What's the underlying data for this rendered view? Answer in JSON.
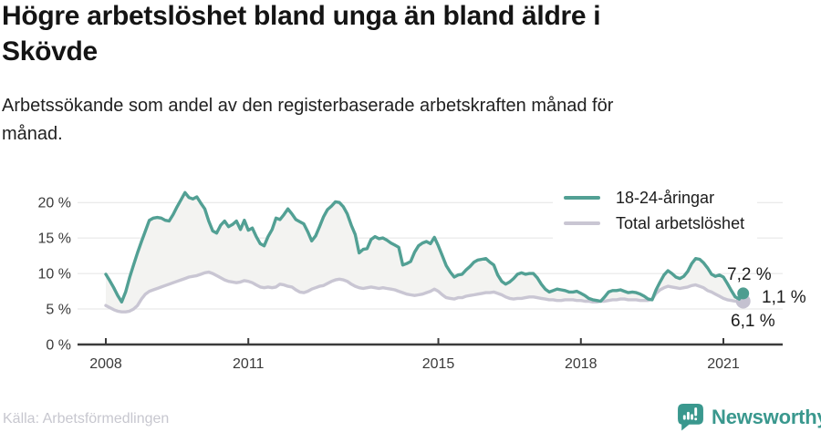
{
  "header": {
    "title_lines": [
      "Högre arbetslöshet bland unga än bland äldre i",
      "Skövde"
    ],
    "subtitle_lines": [
      "Arbetssökande som andel av den registerbaserade arbetskraften månad för",
      "månad."
    ]
  },
  "footer": {
    "source": "Källa: Arbetsförmedlingen",
    "brand": "Newsworthy"
  },
  "colors": {
    "young_line": "#52a094",
    "total_line": "#c9c6d3",
    "young_dot": "#4e9d90",
    "total_dot": "#c4c1d0",
    "fill_between": "#f3f3f1",
    "gridline": "#e4e4e4",
    "axis": "#3b3b3b",
    "tick_label": "#3a3a3a",
    "logo_teal": "#3a988e",
    "background": "#ffffff"
  },
  "chart_data": {
    "type": "line",
    "x_unit": "month",
    "x_start": "2008-01",
    "x_end": "2021-06",
    "grid": "horizontal",
    "legend_position": "top-right",
    "area_fill_between_series": true,
    "ylim": [
      0,
      22
    ],
    "y_ticks": [
      {
        "value": 0,
        "label": "0 %"
      },
      {
        "value": 5,
        "label": "5 %"
      },
      {
        "value": 10,
        "label": "10 %"
      },
      {
        "value": 15,
        "label": "15 %"
      },
      {
        "value": 20,
        "label": "20 %"
      }
    ],
    "x_ticks": [
      {
        "year": 2008,
        "label": "2008"
      },
      {
        "year": 2011,
        "label": "2011"
      },
      {
        "year": 2015,
        "label": "2015"
      },
      {
        "year": 2018,
        "label": "2018"
      },
      {
        "year": 2021,
        "label": "2021"
      }
    ],
    "end_labels": {
      "young": "7,2 %",
      "difference": "1,1 %",
      "total": "6,1 %"
    },
    "series": [
      {
        "name": "18-24-åringar",
        "color": "#52a094",
        "end_value": 7.2,
        "values": [
          9.9,
          9.0,
          8.0,
          6.9,
          6.0,
          7.4,
          9.4,
          11.2,
          12.9,
          14.5,
          16.0,
          17.5,
          17.8,
          17.9,
          17.8,
          17.5,
          17.4,
          18.3,
          19.4,
          20.4,
          21.4,
          20.7,
          20.5,
          20.8,
          19.9,
          19.1,
          17.4,
          16.0,
          15.7,
          16.8,
          17.4,
          16.6,
          16.9,
          17.4,
          16.2,
          17.5,
          16.1,
          16.4,
          15.2,
          14.2,
          13.9,
          15.2,
          16.2,
          17.8,
          17.6,
          18.3,
          19.1,
          18.4,
          17.6,
          17.3,
          17.0,
          15.9,
          14.6,
          15.3,
          16.6,
          18.0,
          19.0,
          19.5,
          20.1,
          20.0,
          19.4,
          18.4,
          16.8,
          15.5,
          12.9,
          13.4,
          13.5,
          14.8,
          15.2,
          14.9,
          15.0,
          14.7,
          14.3,
          14.0,
          13.7,
          11.2,
          11.4,
          11.7,
          13.0,
          13.9,
          14.3,
          14.5,
          14.2,
          15.1,
          13.9,
          12.5,
          11.1,
          10.2,
          9.5,
          9.8,
          9.9,
          10.5,
          11.0,
          11.6,
          11.9,
          12.0,
          12.1,
          11.6,
          11.2,
          9.8,
          8.9,
          8.5,
          8.8,
          9.3,
          9.9,
          10.1,
          9.9,
          10.0,
          10.0,
          9.4,
          8.5,
          7.8,
          7.4,
          7.6,
          7.8,
          7.7,
          7.6,
          7.4,
          7.4,
          7.5,
          7.2,
          6.9,
          6.5,
          6.3,
          6.2,
          6.1,
          6.7,
          7.4,
          7.6,
          7.6,
          7.7,
          7.5,
          7.3,
          7.4,
          7.3,
          7.1,
          6.8,
          6.4,
          6.3,
          7.7,
          8.8,
          9.8,
          10.4,
          10.0,
          9.5,
          9.3,
          9.6,
          10.3,
          11.4,
          12.1,
          12.0,
          11.5,
          10.8,
          9.9,
          9.6,
          9.8,
          9.5,
          8.6,
          7.6,
          6.7,
          6.4,
          7.2
        ]
      },
      {
        "name": "Total arbetslöshet",
        "color": "#c9c6d3",
        "end_value": 6.1,
        "values": [
          5.5,
          5.2,
          4.9,
          4.7,
          4.6,
          4.6,
          4.7,
          5.0,
          5.5,
          6.4,
          7.1,
          7.5,
          7.7,
          7.9,
          8.1,
          8.3,
          8.5,
          8.7,
          8.9,
          9.1,
          9.3,
          9.5,
          9.6,
          9.7,
          9.9,
          10.1,
          10.2,
          10.0,
          9.7,
          9.4,
          9.1,
          8.9,
          8.8,
          8.7,
          8.8,
          9.0,
          8.9,
          8.7,
          8.4,
          8.1,
          8.0,
          8.1,
          8.0,
          8.1,
          8.5,
          8.4,
          8.2,
          8.1,
          7.7,
          7.4,
          7.3,
          7.5,
          7.8,
          8.0,
          8.2,
          8.3,
          8.6,
          8.9,
          9.1,
          9.2,
          9.1,
          8.9,
          8.5,
          8.2,
          8.0,
          7.9,
          8.0,
          8.1,
          8.0,
          7.9,
          8.0,
          7.9,
          7.8,
          7.7,
          7.5,
          7.3,
          7.1,
          7.0,
          6.9,
          7.0,
          7.1,
          7.3,
          7.5,
          7.8,
          7.5,
          7.0,
          6.6,
          6.5,
          6.4,
          6.6,
          6.6,
          6.8,
          6.9,
          7.0,
          7.1,
          7.2,
          7.3,
          7.3,
          7.4,
          7.2,
          7.0,
          6.7,
          6.5,
          6.4,
          6.5,
          6.5,
          6.6,
          6.7,
          6.7,
          6.6,
          6.5,
          6.4,
          6.3,
          6.3,
          6.2,
          6.2,
          6.3,
          6.3,
          6.3,
          6.2,
          6.2,
          6.1,
          6.1,
          6.0,
          6.0,
          6.1,
          6.1,
          6.2,
          6.3,
          6.3,
          6.4,
          6.4,
          6.3,
          6.3,
          6.3,
          6.2,
          6.2,
          6.2,
          6.4,
          7.2,
          7.7,
          8.0,
          8.2,
          8.1,
          8.0,
          7.9,
          8.0,
          8.1,
          8.3,
          8.4,
          8.2,
          8.0,
          7.6,
          7.4,
          7.1,
          6.8,
          6.5,
          6.3,
          6.2,
          6.1,
          6.0,
          6.1
        ]
      }
    ]
  }
}
